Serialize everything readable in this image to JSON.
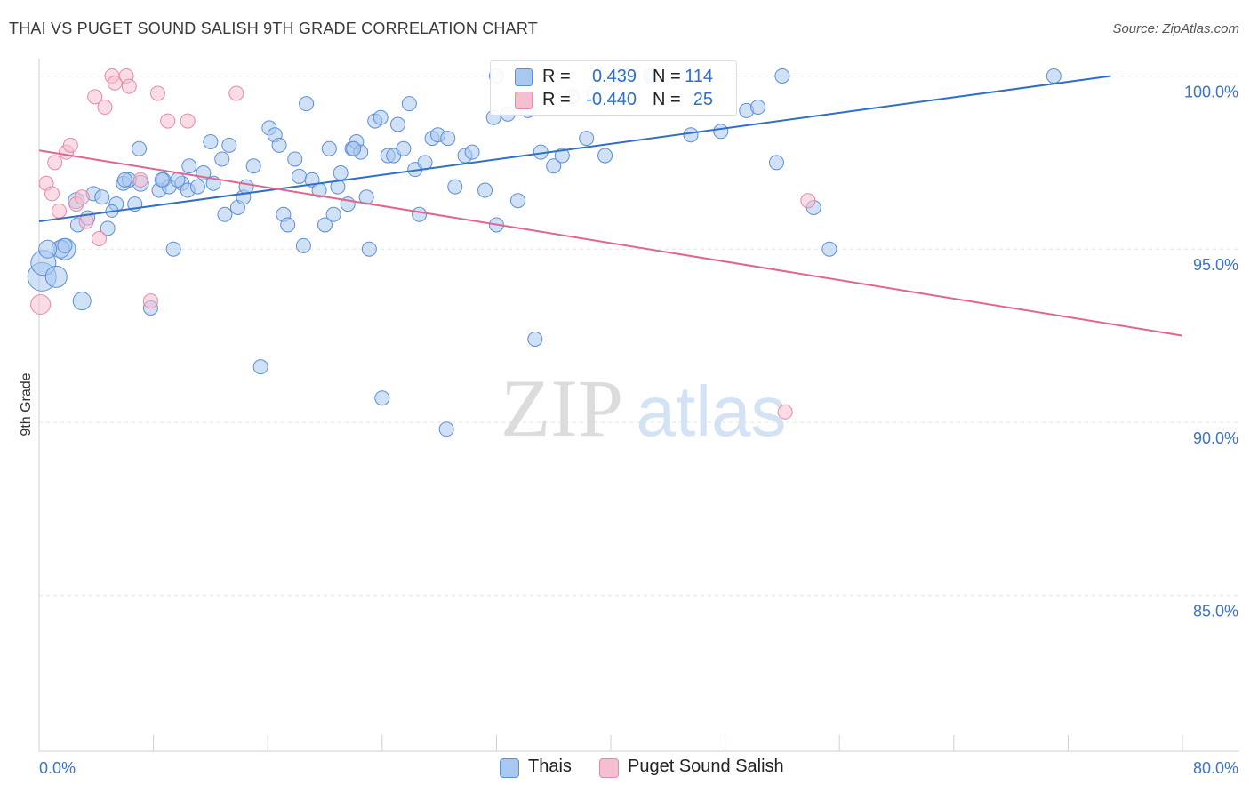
{
  "title": "THAI VS PUGET SOUND SALISH 9TH GRADE CORRELATION CHART",
  "source": "Source: ZipAtlas.com",
  "watermark": {
    "zip": "ZIP",
    "atlas": "atlas"
  },
  "colors": {
    "blue_fill": "#a9c8ef",
    "blue_stroke": "#5b8fd6",
    "blue_line": "#2f6fca",
    "pink_fill": "#f6bfd0",
    "pink_stroke": "#e68aa7",
    "pink_line": "#e0668f",
    "axis_label": "#3d73c4",
    "grid": "#e3e3e3"
  },
  "legend": {
    "rows": [
      {
        "r_label": "R =",
        "r_value": "0.439",
        "n_label": "N =",
        "n_value": "114",
        "color": "#a9c8ef",
        "stroke": "#5b8fd6"
      },
      {
        "r_label": "R =",
        "r_value": "-0.440",
        "n_label": "N =",
        "n_value": "25",
        "color": "#f6bfd0",
        "stroke": "#e68aa7"
      }
    ]
  },
  "bottom_legend": [
    {
      "label": "Thais",
      "color": "#a9c8ef",
      "stroke": "#5b8fd6"
    },
    {
      "label": "Puget Sound Salish",
      "color": "#f6bfd0",
      "stroke": "#e68aa7"
    }
  ],
  "chart_data": {
    "type": "scatter",
    "title": "THAI VS PUGET SOUND SALISH 9TH GRADE CORRELATION CHART",
    "xlabel": "",
    "ylabel": "9th Grade",
    "xlim": [
      0,
      80
    ],
    "ylim": [
      80.5,
      100.5
    ],
    "x_tick_labels": [
      {
        "value": 0,
        "label": "0.0%"
      },
      {
        "value": 80,
        "label": "80.0%"
      }
    ],
    "y_tick_labels": [
      {
        "value": 100,
        "label": "100.0%"
      },
      {
        "value": 95,
        "label": "95.0%"
      },
      {
        "value": 90,
        "label": "90.0%"
      },
      {
        "value": 85,
        "label": "85.0%"
      }
    ],
    "x_minor_ticks": [
      8,
      16,
      24,
      32,
      40,
      48,
      56,
      64,
      72,
      80
    ],
    "grid": true,
    "legend_position": "top-center",
    "series": [
      {
        "name": "Thais",
        "trend": {
          "x0": 0,
          "y0": 95.8,
          "x1": 75,
          "y1": 100.0
        },
        "points": [
          [
            0.2,
            94.2,
            16
          ],
          [
            0.3,
            94.6,
            14
          ],
          [
            1.2,
            94.2,
            12
          ],
          [
            1.8,
            95.0,
            12
          ],
          [
            1.5,
            95.0,
            10
          ],
          [
            0.6,
            95.0,
            10
          ],
          [
            1.8,
            95.1,
            8
          ],
          [
            3.0,
            93.5,
            10
          ],
          [
            7.8,
            93.3,
            8
          ],
          [
            9.4,
            95.0,
            8
          ],
          [
            2.7,
            95.7,
            8
          ],
          [
            3.4,
            95.9,
            8
          ],
          [
            4.8,
            95.6,
            8
          ],
          [
            5.4,
            96.3,
            8
          ],
          [
            5.1,
            96.1,
            7
          ],
          [
            2.6,
            96.4,
            9
          ],
          [
            3.8,
            96.6,
            8
          ],
          [
            4.4,
            96.5,
            8
          ],
          [
            6.7,
            96.3,
            8
          ],
          [
            7.1,
            96.9,
            9
          ],
          [
            5.9,
            96.9,
            8
          ],
          [
            6.3,
            97.0,
            8
          ],
          [
            8.4,
            96.7,
            8
          ],
          [
            8.7,
            97.0,
            8
          ],
          [
            9.1,
            96.8,
            8
          ],
          [
            10.0,
            96.9,
            8
          ],
          [
            10.4,
            96.7,
            8
          ],
          [
            11.1,
            96.8,
            8
          ],
          [
            11.5,
            97.2,
            8
          ],
          [
            10.5,
            97.4,
            8
          ],
          [
            12.2,
            96.9,
            8
          ],
          [
            12.0,
            98.1,
            8
          ],
          [
            13.3,
            98.0,
            8
          ],
          [
            12.8,
            97.6,
            8
          ],
          [
            13.0,
            96.0,
            8
          ],
          [
            13.9,
            96.2,
            8
          ],
          [
            14.3,
            96.5,
            8
          ],
          [
            14.5,
            96.8,
            8
          ],
          [
            15.0,
            97.4,
            8
          ],
          [
            16.1,
            98.5,
            8
          ],
          [
            16.5,
            98.3,
            8
          ],
          [
            16.8,
            98.0,
            8
          ],
          [
            17.1,
            96.0,
            8
          ],
          [
            17.4,
            95.7,
            8
          ],
          [
            17.9,
            97.6,
            8
          ],
          [
            18.2,
            97.1,
            8
          ],
          [
            18.5,
            95.1,
            8
          ],
          [
            18.7,
            99.2,
            8
          ],
          [
            19.1,
            97.0,
            8
          ],
          [
            19.6,
            96.7,
            8
          ],
          [
            20.0,
            95.7,
            8
          ],
          [
            20.3,
            97.9,
            8
          ],
          [
            20.6,
            96.0,
            8
          ],
          [
            20.9,
            96.8,
            8
          ],
          [
            21.1,
            97.2,
            8
          ],
          [
            21.6,
            96.3,
            8
          ],
          [
            21.9,
            97.9,
            8
          ],
          [
            22.2,
            98.1,
            8
          ],
          [
            22.5,
            97.8,
            8
          ],
          [
            22.9,
            96.5,
            8
          ],
          [
            23.1,
            95.0,
            8
          ],
          [
            23.5,
            98.7,
            8
          ],
          [
            23.9,
            98.8,
            8
          ],
          [
            24.4,
            97.7,
            8
          ],
          [
            24.8,
            97.7,
            8
          ],
          [
            25.1,
            98.6,
            8
          ],
          [
            25.5,
            97.9,
            8
          ],
          [
            25.9,
            99.2,
            8
          ],
          [
            26.3,
            97.3,
            8
          ],
          [
            26.6,
            96.0,
            8
          ],
          [
            27.0,
            97.5,
            8
          ],
          [
            27.5,
            98.2,
            8
          ],
          [
            27.9,
            98.3,
            8
          ],
          [
            28.6,
            98.2,
            8
          ],
          [
            29.1,
            96.8,
            8
          ],
          [
            29.8,
            97.7,
            8
          ],
          [
            30.3,
            97.8,
            8
          ],
          [
            31.2,
            96.7,
            8
          ],
          [
            32.0,
            95.7,
            8
          ],
          [
            32.8,
            98.9,
            8
          ],
          [
            33.5,
            96.4,
            8
          ],
          [
            34.2,
            99.0,
            8
          ],
          [
            34.7,
            92.4,
            8
          ],
          [
            35.1,
            97.8,
            8
          ],
          [
            36.0,
            97.4,
            8
          ],
          [
            36.6,
            97.7,
            8
          ],
          [
            37.3,
            99.4,
            8
          ],
          [
            38.3,
            98.2,
            8
          ],
          [
            39.6,
            97.7,
            8
          ],
          [
            40.6,
            100.0,
            8
          ],
          [
            41.2,
            100.0,
            8
          ],
          [
            43.0,
            100.0,
            8
          ],
          [
            45.6,
            98.3,
            8
          ],
          [
            47.7,
            98.4,
            8
          ],
          [
            49.5,
            99.0,
            8
          ],
          [
            50.3,
            99.1,
            8
          ],
          [
            52.0,
            100.0,
            8
          ],
          [
            51.6,
            97.5,
            8
          ],
          [
            54.2,
            96.2,
            8
          ],
          [
            55.3,
            95.0,
            8
          ],
          [
            71.0,
            100.0,
            8
          ],
          [
            15.5,
            91.6,
            8
          ],
          [
            24.0,
            90.7,
            8
          ],
          [
            28.5,
            89.8,
            8
          ],
          [
            32.0,
            100.0,
            8
          ],
          [
            9.7,
            97.0,
            8
          ],
          [
            7.0,
            97.9,
            8
          ],
          [
            38.8,
            99.5,
            8
          ],
          [
            40.2,
            99.9,
            8
          ],
          [
            8.6,
            97.0,
            8
          ],
          [
            6.0,
            97.0,
            8
          ],
          [
            31.8,
            98.8,
            8
          ],
          [
            42.8,
            100.0,
            8
          ],
          [
            22.0,
            97.9,
            8
          ]
        ]
      },
      {
        "name": "Puget Sound Salish",
        "trend": {
          "x0": 0,
          "y0": 97.85,
          "x1": 80,
          "y1": 92.5
        },
        "points": [
          [
            0.1,
            93.4,
            11
          ],
          [
            0.5,
            96.9,
            8
          ],
          [
            0.9,
            96.6,
            8
          ],
          [
            1.1,
            97.5,
            8
          ],
          [
            1.4,
            96.1,
            8
          ],
          [
            1.9,
            97.8,
            8
          ],
          [
            2.2,
            98.0,
            8
          ],
          [
            2.6,
            96.3,
            8
          ],
          [
            3.0,
            96.5,
            8
          ],
          [
            3.3,
            95.8,
            8
          ],
          [
            3.9,
            99.4,
            8
          ],
          [
            4.2,
            95.3,
            8
          ],
          [
            4.6,
            99.1,
            8
          ],
          [
            5.1,
            100.0,
            8
          ],
          [
            5.3,
            99.8,
            8
          ],
          [
            6.1,
            100.0,
            8
          ],
          [
            6.3,
            99.7,
            8
          ],
          [
            7.1,
            97.0,
            8
          ],
          [
            7.8,
            93.5,
            8
          ],
          [
            8.3,
            99.5,
            8
          ],
          [
            9.0,
            98.7,
            8
          ],
          [
            10.4,
            98.7,
            8
          ],
          [
            13.8,
            99.5,
            8
          ],
          [
            53.8,
            96.4,
            8
          ],
          [
            52.2,
            90.3,
            8
          ]
        ]
      }
    ]
  }
}
